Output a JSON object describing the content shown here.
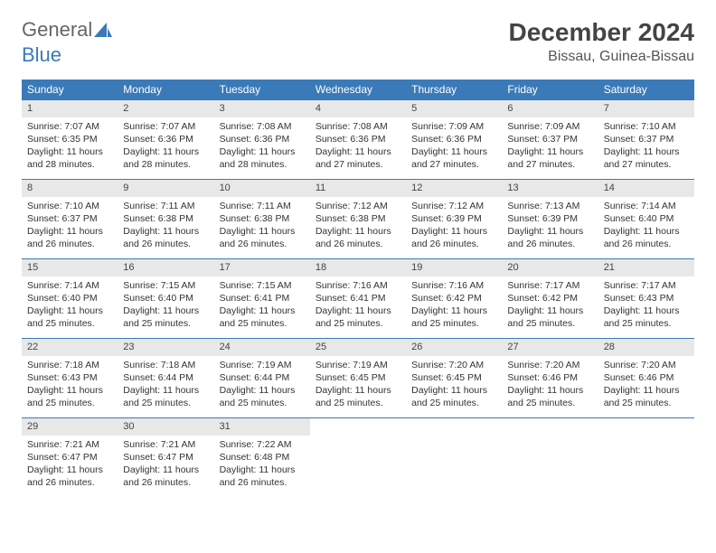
{
  "logo": {
    "text1": "General",
    "text2": "Blue"
  },
  "title": "December 2024",
  "subtitle": "Bissau, Guinea-Bissau",
  "colors": {
    "header_bg": "#3a7ab8",
    "daynum_bg": "#e8e8e8",
    "rule": "#3a7ab8"
  },
  "weekdays": [
    "Sunday",
    "Monday",
    "Tuesday",
    "Wednesday",
    "Thursday",
    "Friday",
    "Saturday"
  ],
  "weeks": [
    [
      {
        "n": "1",
        "sr": "7:07 AM",
        "ss": "6:35 PM",
        "dl": "11 hours and 28 minutes."
      },
      {
        "n": "2",
        "sr": "7:07 AM",
        "ss": "6:36 PM",
        "dl": "11 hours and 28 minutes."
      },
      {
        "n": "3",
        "sr": "7:08 AM",
        "ss": "6:36 PM",
        "dl": "11 hours and 28 minutes."
      },
      {
        "n": "4",
        "sr": "7:08 AM",
        "ss": "6:36 PM",
        "dl": "11 hours and 27 minutes."
      },
      {
        "n": "5",
        "sr": "7:09 AM",
        "ss": "6:36 PM",
        "dl": "11 hours and 27 minutes."
      },
      {
        "n": "6",
        "sr": "7:09 AM",
        "ss": "6:37 PM",
        "dl": "11 hours and 27 minutes."
      },
      {
        "n": "7",
        "sr": "7:10 AM",
        "ss": "6:37 PM",
        "dl": "11 hours and 27 minutes."
      }
    ],
    [
      {
        "n": "8",
        "sr": "7:10 AM",
        "ss": "6:37 PM",
        "dl": "11 hours and 26 minutes."
      },
      {
        "n": "9",
        "sr": "7:11 AM",
        "ss": "6:38 PM",
        "dl": "11 hours and 26 minutes."
      },
      {
        "n": "10",
        "sr": "7:11 AM",
        "ss": "6:38 PM",
        "dl": "11 hours and 26 minutes."
      },
      {
        "n": "11",
        "sr": "7:12 AM",
        "ss": "6:38 PM",
        "dl": "11 hours and 26 minutes."
      },
      {
        "n": "12",
        "sr": "7:12 AM",
        "ss": "6:39 PM",
        "dl": "11 hours and 26 minutes."
      },
      {
        "n": "13",
        "sr": "7:13 AM",
        "ss": "6:39 PM",
        "dl": "11 hours and 26 minutes."
      },
      {
        "n": "14",
        "sr": "7:14 AM",
        "ss": "6:40 PM",
        "dl": "11 hours and 26 minutes."
      }
    ],
    [
      {
        "n": "15",
        "sr": "7:14 AM",
        "ss": "6:40 PM",
        "dl": "11 hours and 25 minutes."
      },
      {
        "n": "16",
        "sr": "7:15 AM",
        "ss": "6:40 PM",
        "dl": "11 hours and 25 minutes."
      },
      {
        "n": "17",
        "sr": "7:15 AM",
        "ss": "6:41 PM",
        "dl": "11 hours and 25 minutes."
      },
      {
        "n": "18",
        "sr": "7:16 AM",
        "ss": "6:41 PM",
        "dl": "11 hours and 25 minutes."
      },
      {
        "n": "19",
        "sr": "7:16 AM",
        "ss": "6:42 PM",
        "dl": "11 hours and 25 minutes."
      },
      {
        "n": "20",
        "sr": "7:17 AM",
        "ss": "6:42 PM",
        "dl": "11 hours and 25 minutes."
      },
      {
        "n": "21",
        "sr": "7:17 AM",
        "ss": "6:43 PM",
        "dl": "11 hours and 25 minutes."
      }
    ],
    [
      {
        "n": "22",
        "sr": "7:18 AM",
        "ss": "6:43 PM",
        "dl": "11 hours and 25 minutes."
      },
      {
        "n": "23",
        "sr": "7:18 AM",
        "ss": "6:44 PM",
        "dl": "11 hours and 25 minutes."
      },
      {
        "n": "24",
        "sr": "7:19 AM",
        "ss": "6:44 PM",
        "dl": "11 hours and 25 minutes."
      },
      {
        "n": "25",
        "sr": "7:19 AM",
        "ss": "6:45 PM",
        "dl": "11 hours and 25 minutes."
      },
      {
        "n": "26",
        "sr": "7:20 AM",
        "ss": "6:45 PM",
        "dl": "11 hours and 25 minutes."
      },
      {
        "n": "27",
        "sr": "7:20 AM",
        "ss": "6:46 PM",
        "dl": "11 hours and 25 minutes."
      },
      {
        "n": "28",
        "sr": "7:20 AM",
        "ss": "6:46 PM",
        "dl": "11 hours and 25 minutes."
      }
    ],
    [
      {
        "n": "29",
        "sr": "7:21 AM",
        "ss": "6:47 PM",
        "dl": "11 hours and 26 minutes."
      },
      {
        "n": "30",
        "sr": "7:21 AM",
        "ss": "6:47 PM",
        "dl": "11 hours and 26 minutes."
      },
      {
        "n": "31",
        "sr": "7:22 AM",
        "ss": "6:48 PM",
        "dl": "11 hours and 26 minutes."
      },
      null,
      null,
      null,
      null
    ]
  ],
  "labels": {
    "sunrise": "Sunrise: ",
    "sunset": "Sunset: ",
    "daylight": "Daylight: "
  }
}
